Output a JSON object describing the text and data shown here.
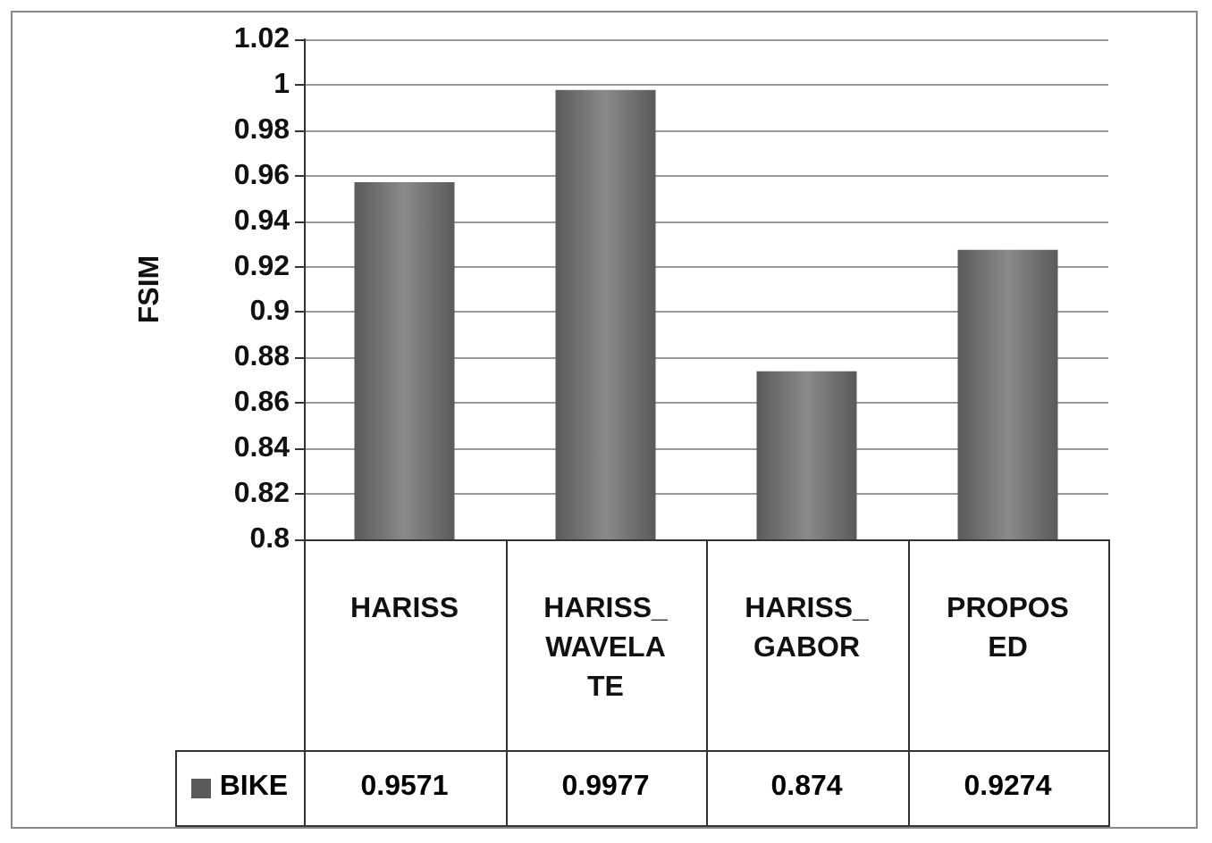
{
  "chart_data": {
    "type": "bar",
    "ylabel": "FSIM",
    "categories": [
      "HARISS",
      "HARISS_WAVELATE",
      "HARISS_GABOR",
      "PROPOSED"
    ],
    "series": [
      {
        "name": "BIKE",
        "color": "#5a5a5a",
        "values": [
          0.9571,
          0.9977,
          0.874,
          0.9274
        ]
      }
    ],
    "ylim": [
      0.8,
      1.02
    ],
    "yticks": [
      0.8,
      0.82,
      0.84,
      0.86,
      0.88,
      0.9,
      0.92,
      0.94,
      0.96,
      0.98,
      1,
      1.02
    ],
    "grid": "y",
    "data_labels": true,
    "legend": "bottom left"
  }
}
